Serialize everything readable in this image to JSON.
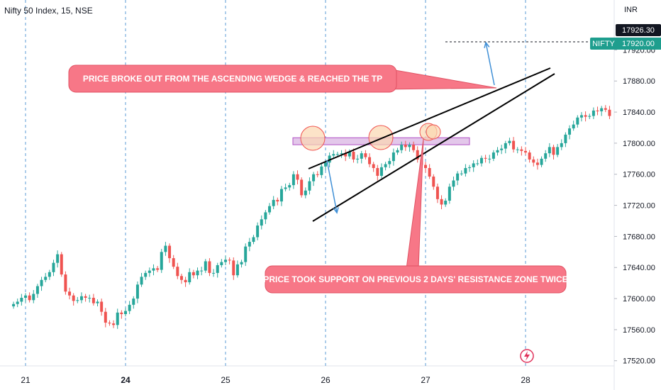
{
  "header": {
    "title": "Nifty 50 Index, 15, NSE",
    "currency": "INR"
  },
  "colors": {
    "up": "#26a69a",
    "down": "#ef5350",
    "callout_fill": "#f77787",
    "callout_border": "#e05263",
    "zone_fill": "#e3c7ea",
    "zone_border": "#b04fc4",
    "circle_fill": "#fbd7b0",
    "circle_border": "#ef5350",
    "arrow": "#3f8fd6",
    "session_line": "#5b9bd5",
    "trendline": "#000000",
    "badge": "#1e9e8e",
    "price_tag_bg": "#131722"
  },
  "chart_data": {
    "type": "candlestick",
    "title": "Nifty 50 Index, 15, NSE",
    "ylabel": "INR",
    "ylim": [
      17512,
      17940
    ],
    "y_ticks": [
      17920,
      17880,
      17840,
      17800,
      17760,
      17720,
      17680,
      17640,
      17600,
      17560,
      17520
    ],
    "y_tick_labels": [
      "17920.00",
      "17880.00",
      "17840.00",
      "17800.00",
      "17760.00",
      "17720.00",
      "17680.00",
      "17640.00",
      "17600.00",
      "17560.00",
      "17520.00"
    ],
    "x_ticks": [
      "21",
      "24",
      "25",
      "26",
      "27",
      "28"
    ],
    "session_tick_labels": [
      "21",
      "24",
      "25",
      "26",
      "27",
      "28"
    ],
    "bars_per_session": 25,
    "current_price": 17926.3,
    "current_price_label": "17926.30",
    "symbol_badge": "NIFTY",
    "closes": [
      17593,
      17596,
      17601,
      17604,
      17598,
      17606,
      17616,
      17624,
      17628,
      17634,
      17646,
      17657,
      17631,
      17609,
      17604,
      17597,
      17598,
      17603,
      17601,
      17601,
      17594,
      17596,
      17583,
      17569,
      17568,
      17566,
      17582,
      17580,
      17584,
      17592,
      17600,
      17618,
      17628,
      17633,
      17636,
      17639,
      17637,
      17660,
      17668,
      17652,
      17641,
      17629,
      17624,
      17621,
      17634,
      17630,
      17636,
      17636,
      17648,
      17633,
      17633,
      17643,
      17647,
      17650,
      17649,
      17630,
      17644,
      17647,
      17667,
      17673,
      17679,
      17694,
      17702,
      17711,
      17719,
      17727,
      17725,
      17741,
      17743,
      17746,
      17760,
      17753,
      17733,
      17739,
      17751,
      17760,
      17759,
      17770,
      17775,
      17784,
      17786,
      17786,
      17787,
      17783,
      17789,
      17779,
      17780,
      17787,
      17782,
      17773,
      17768,
      17758,
      17769,
      17773,
      17777,
      17788,
      17791,
      17798,
      17795,
      17798,
      17791,
      17779,
      17772,
      17768,
      17757,
      17744,
      17728,
      17721,
      17726,
      17744,
      17752,
      17761,
      17761,
      17768,
      17769,
      17774,
      17774,
      17781,
      17780,
      17780,
      17788,
      17791,
      17793,
      17800,
      17803,
      17792,
      17792,
      17790,
      17788,
      17779,
      17775,
      17772,
      17780,
      17787,
      17795,
      17785,
      17795,
      17800,
      17811,
      17819,
      17824,
      17833,
      17836,
      17834,
      17835,
      17842,
      17841,
      17845,
      17843,
      17835,
      17839,
      17848,
      17850,
      17854,
      17858,
      17861,
      17857,
      17848,
      17847,
      17849,
      17850,
      17855,
      17862,
      17878,
      17884,
      17888,
      17886,
      17894,
      17904,
      17917,
      17926
    ],
    "annotations": [
      "PRICE BROKE OUT FROM THE ASCENDING WEDGE & REACHED THE TP",
      "PRICE TOOK SUPPORT ON PREVIOUS 2 DAYS' RESISTANCE ZONE TWICE"
    ],
    "resistance_zone": [
      17798,
      17807
    ],
    "wedge_upper": [
      [
        125,
        17765
      ],
      [
        169,
        17887
      ]
    ],
    "wedge_lower": [
      [
        130,
        17710
      ],
      [
        171,
        17878
      ]
    ],
    "grid": true,
    "legend": "none"
  }
}
